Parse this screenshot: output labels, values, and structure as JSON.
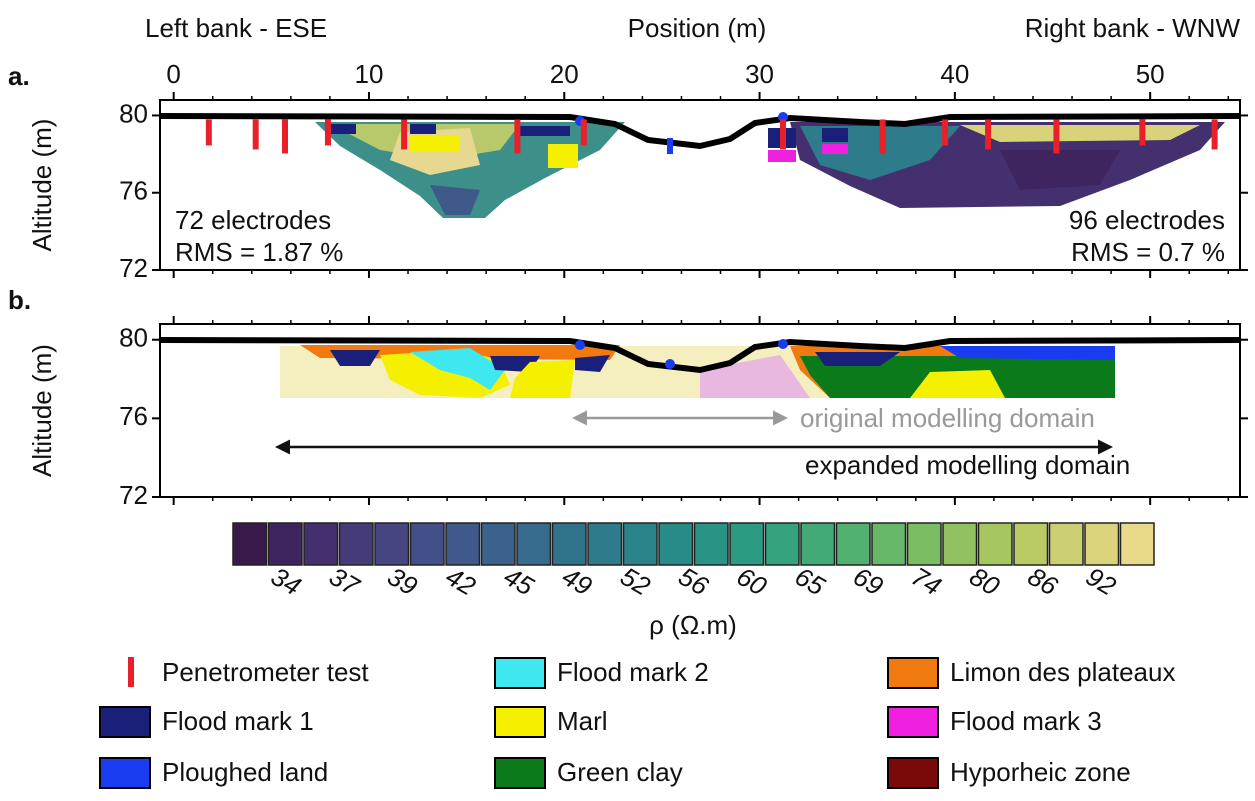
{
  "chart_data": [
    {
      "type": "section",
      "panel": "a.",
      "xlabel": "Position (m)",
      "left_label": "Left bank - ESE",
      "right_label": "Right bank - WNW",
      "ylabel": "Altitude (m)",
      "xlim": [
        -0.7,
        54.6
      ],
      "ylim": [
        72,
        80.8
      ],
      "xticks": [
        0,
        10,
        20,
        30,
        40,
        50
      ],
      "yticks": [
        72,
        76,
        80
      ],
      "annotations": [
        "72 electrodes",
        "RMS = 1.87 %",
        "96 electrodes",
        "RMS = 0.7 %"
      ],
      "penetrometer_x": [
        1.8,
        4.2,
        5.7,
        7.9,
        11.8,
        17.6,
        21,
        31.2,
        36.3,
        39.5,
        41.7,
        45.2,
        49.6,
        53.3
      ],
      "penetrometer_color": "#e8202a"
    },
    {
      "type": "section",
      "panel": "b.",
      "ylabel": "Altitude (m)",
      "xlim": [
        -0.7,
        54.6
      ],
      "ylim": [
        72,
        80.8
      ],
      "xticks": [
        0,
        10,
        20,
        30,
        40,
        50
      ],
      "yticks": [
        72,
        76,
        80
      ],
      "annotations": [
        "original modelling domain",
        "expanded modelling domain"
      ]
    }
  ],
  "colorbar": {
    "label": "ρ (Ω.m)",
    "ticks": [
      34,
      37,
      39,
      42,
      45,
      49,
      52,
      56,
      60,
      65,
      69,
      74,
      80,
      86,
      92
    ],
    "colors": [
      "#3a1a4a",
      "#3f2560",
      "#44306e",
      "#463b7a",
      "#464582",
      "#434f88",
      "#3f598b",
      "#3b628d",
      "#366b8d",
      "#32738c",
      "#2e7b8b",
      "#2b838a",
      "#298b88",
      "#299386",
      "#2d9b82",
      "#35a37d",
      "#42aa77",
      "#53b16f",
      "#66b868",
      "#7bbd62",
      "#91c25f",
      "#a6c760",
      "#bacb66",
      "#cccf71",
      "#dcd37d",
      "#e9d98a"
    ]
  },
  "legend": [
    {
      "name": "Penetrometer test",
      "color": "#e8202a",
      "shape": "bar"
    },
    {
      "name": "Flood mark 1",
      "color": "#1a1f7a"
    },
    {
      "name": "Ploughed land",
      "color": "#1a3cf0"
    },
    {
      "name": "Flood mark 2",
      "color": "#3fe8f0"
    },
    {
      "name": "Marl",
      "color": "#f5f000"
    },
    {
      "name": "Green clay",
      "color": "#0a7a1a"
    },
    {
      "name": "Limon des plateaux",
      "color": "#f07a10"
    },
    {
      "name": "Flood mark 3",
      "color": "#f020e0"
    },
    {
      "name": "Hyporheic zone",
      "color": "#7a0a0a"
    }
  ]
}
